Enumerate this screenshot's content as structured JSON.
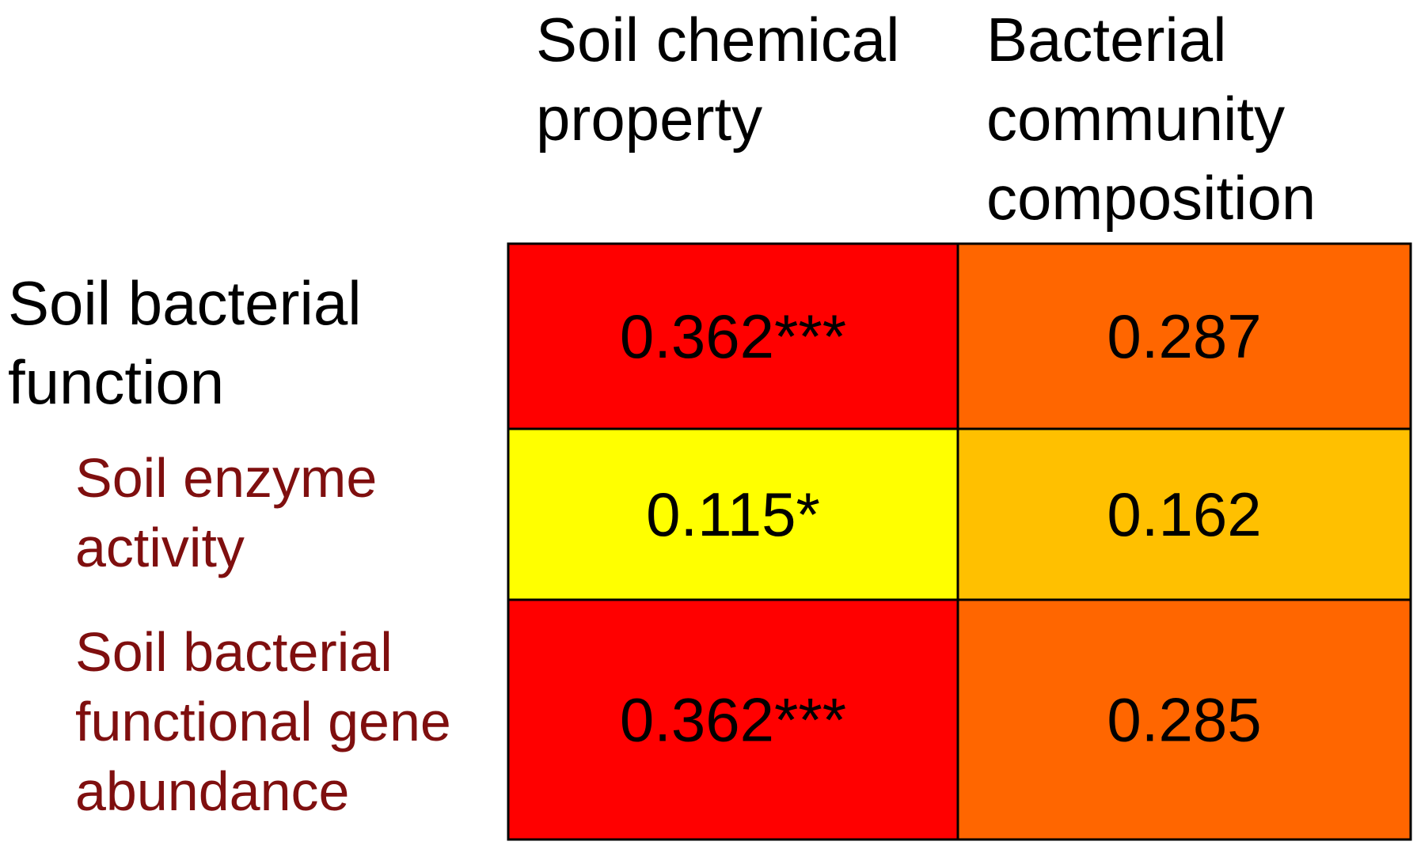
{
  "chart_data": {
    "type": "heatmap",
    "columns": [
      "Soil chemical property",
      "Bacterial community composition"
    ],
    "rows": [
      {
        "label": "Soil bacterial function",
        "level": "main",
        "values": [
          0.362,
          0.287
        ],
        "labels": [
          "0.362***",
          "0.287"
        ]
      },
      {
        "label": "Soil enzyme activity",
        "level": "sub",
        "values": [
          0.115,
          0.162
        ],
        "labels": [
          "0.115*",
          "0.162"
        ]
      },
      {
        "label": "Soil bacterial functional gene abundance",
        "level": "sub",
        "values": [
          0.362,
          0.285
        ],
        "labels": [
          "0.362***",
          "0.285"
        ]
      }
    ],
    "cell_colors": [
      [
        "#ff0000",
        "#ff6600"
      ],
      [
        "#ffff00",
        "#ffc000"
      ],
      [
        "#ff0000",
        "#ff6600"
      ]
    ],
    "colors": {
      "main_label": "#000000",
      "sub_label": "#7f0f0f",
      "text": "#000000",
      "border": "#000000"
    }
  }
}
